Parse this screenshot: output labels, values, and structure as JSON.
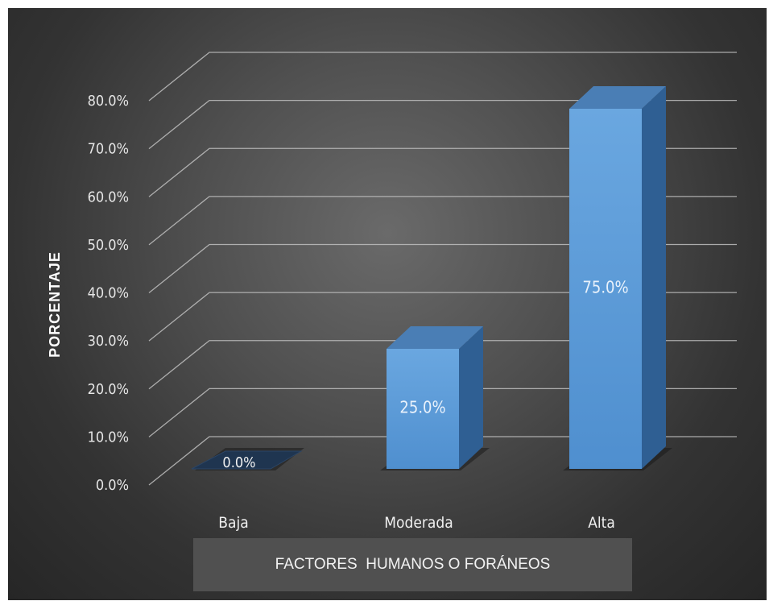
{
  "chart_data": {
    "type": "bar",
    "style": "3d-column",
    "categories": [
      "Baja",
      "Moderada",
      "Alta"
    ],
    "values": [
      0.0,
      25.0,
      75.0
    ],
    "data_labels": [
      "0.0%",
      "25.0%",
      "75.0%"
    ],
    "title": "",
    "xlabel": "FACTORES  HUMANOS O FORÁNEOS",
    "ylabel": "PORCENTAJE",
    "ylim": [
      0,
      80
    ],
    "ytick_step": 10,
    "ytick_labels": [
      "0.0%",
      "10.0%",
      "20.0%",
      "30.0%",
      "40.0%",
      "50.0%",
      "60.0%",
      "70.0%",
      "80.0%"
    ],
    "grid": true,
    "legend": "none",
    "colors": {
      "bar_front": "#5b9bd5",
      "bar_top": "#4a7eb5",
      "bar_side": "#2f5f93",
      "background": "#404040",
      "gridline": "#bfbfbf"
    }
  }
}
